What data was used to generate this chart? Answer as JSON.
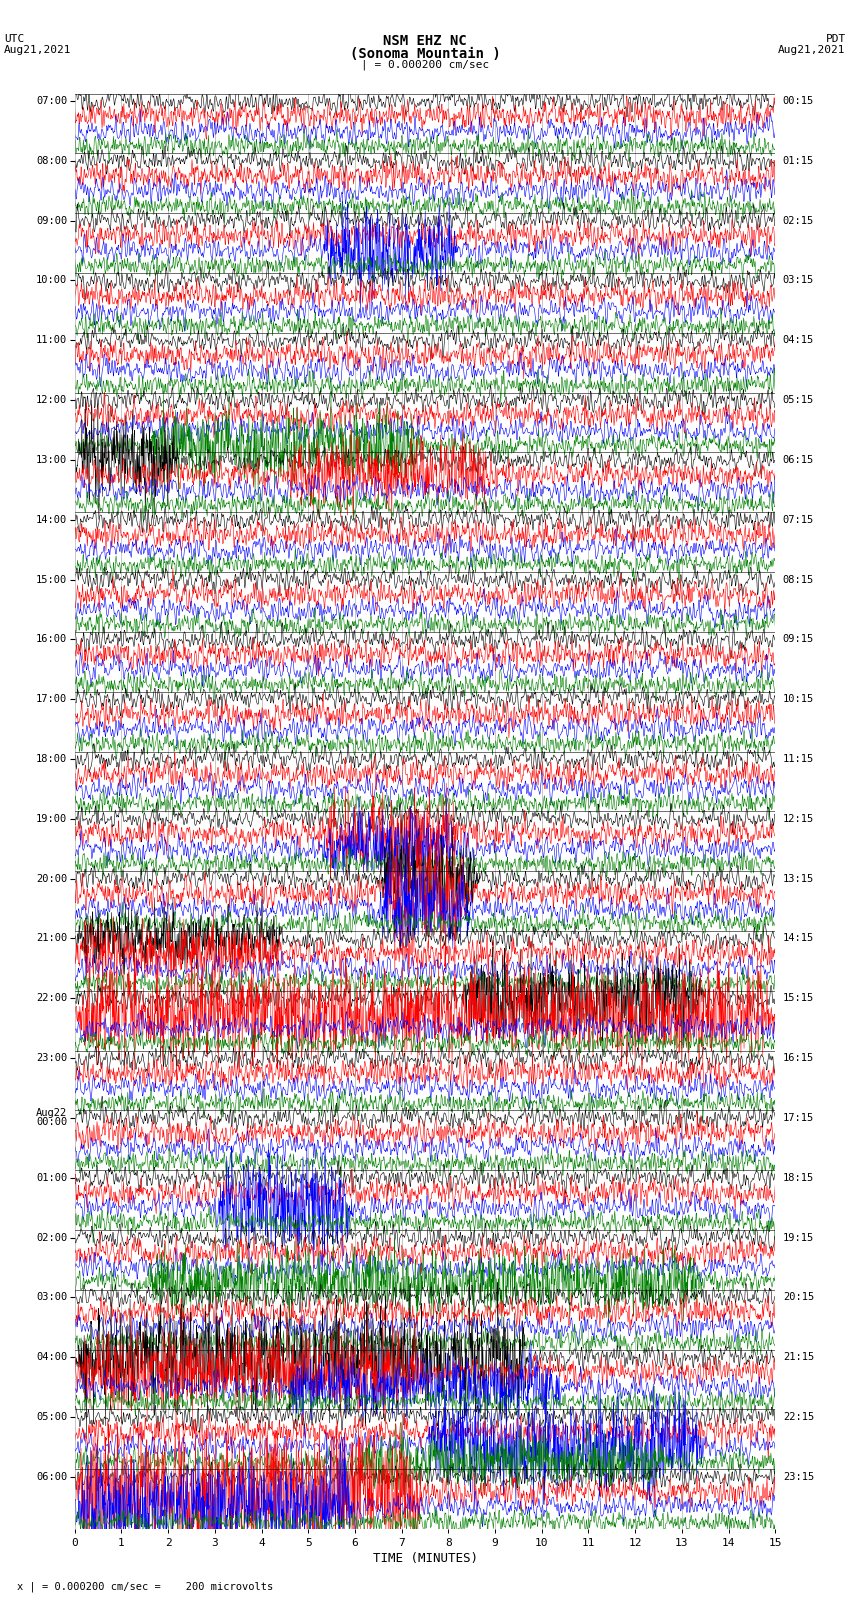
{
  "title_line1": "NSM EHZ NC",
  "title_line2": "(Sonoma Mountain )",
  "title_line3": "| = 0.000200 cm/sec",
  "left_header_line1": "UTC",
  "left_header_line2": "Aug21,2021",
  "right_header_line1": "PDT",
  "right_header_line2": "Aug21,2021",
  "xlabel": "TIME (MINUTES)",
  "footer": "x | = 0.000200 cm/sec =    200 microvolts",
  "colors": [
    "black",
    "red",
    "blue",
    "green"
  ],
  "n_groups": 24,
  "n_points": 1800,
  "x_ticks": [
    0,
    1,
    2,
    3,
    4,
    5,
    6,
    7,
    8,
    9,
    10,
    11,
    12,
    13,
    14,
    15
  ],
  "bg_color": "white",
  "fig_width": 8.5,
  "fig_height": 16.13,
  "dpi": 100,
  "left_times": [
    "07:00",
    "08:00",
    "09:00",
    "10:00",
    "11:00",
    "12:00",
    "13:00",
    "14:00",
    "15:00",
    "16:00",
    "17:00",
    "18:00",
    "19:00",
    "20:00",
    "21:00",
    "22:00",
    "23:00",
    "Aug22\n00:00",
    "01:00",
    "02:00",
    "03:00",
    "04:00",
    "05:00",
    "06:00"
  ],
  "right_times": [
    "00:15",
    "01:15",
    "02:15",
    "03:15",
    "04:15",
    "05:15",
    "06:15",
    "07:15",
    "08:15",
    "09:15",
    "10:15",
    "11:15",
    "12:15",
    "13:15",
    "14:15",
    "15:15",
    "16:15",
    "17:15",
    "18:15",
    "19:15",
    "20:15",
    "21:15",
    "22:15",
    "23:15"
  ]
}
